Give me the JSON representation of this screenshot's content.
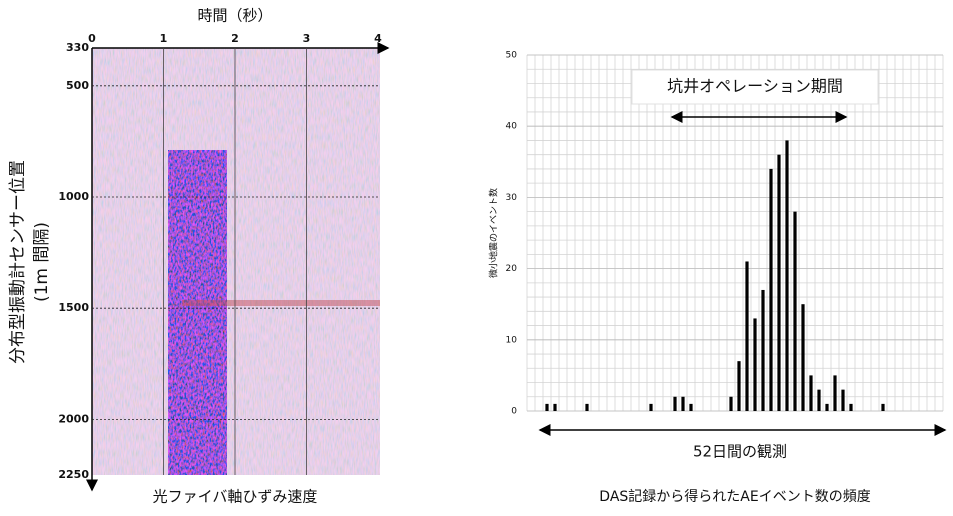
{
  "chart_data": [
    {
      "type": "image",
      "xlabel": "時間（秒）",
      "title": "光ファイバ軸ひずみ速度",
      "ylabel": [
        "分布型振動計センサー位置",
        "(1m 間隔)"
      ],
      "xlim": [
        0,
        4
      ],
      "xticks": [
        0,
        1,
        2,
        3,
        4
      ],
      "ylim": [
        330,
        2250
      ],
      "yticks": [
        330,
        500,
        1000,
        1500,
        2000,
        2250
      ]
    },
    {
      "type": "bar",
      "title": "DAS記録から得られたAEイベント数の頻度",
      "xlabel": "52日間の観測",
      "ylabel": "微小地震のイベント数",
      "annotation": "坑井オペレーション期間",
      "color": "#000000",
      "ylim": [
        0,
        50
      ],
      "yticks": [
        0,
        10,
        20,
        30,
        40,
        50
      ],
      "grid": true,
      "categories": [
        null,
        null,
        null,
        null,
        null,
        null,
        null,
        null,
        null,
        null,
        null,
        null,
        null,
        null,
        null,
        null,
        null,
        null,
        null,
        null,
        null,
        null,
        null,
        null,
        null,
        null,
        null,
        null,
        null,
        null,
        null,
        null,
        null,
        null,
        null,
        null,
        null,
        null,
        null,
        null,
        null,
        null,
        null,
        null,
        null,
        null,
        null,
        null,
        null,
        null,
        null,
        null
      ],
      "values": [
        0,
        0,
        1,
        1,
        0,
        0,
        0,
        1,
        0,
        0,
        0,
        0,
        0,
        0,
        0,
        1,
        0,
        0,
        2,
        2,
        1,
        0,
        0,
        0,
        0,
        2,
        7,
        21,
        13,
        17,
        34,
        36,
        38,
        28,
        15,
        5,
        3,
        1,
        5,
        3,
        1,
        0,
        0,
        0,
        1,
        0,
        0,
        0,
        0,
        0,
        0,
        0
      ]
    }
  ]
}
